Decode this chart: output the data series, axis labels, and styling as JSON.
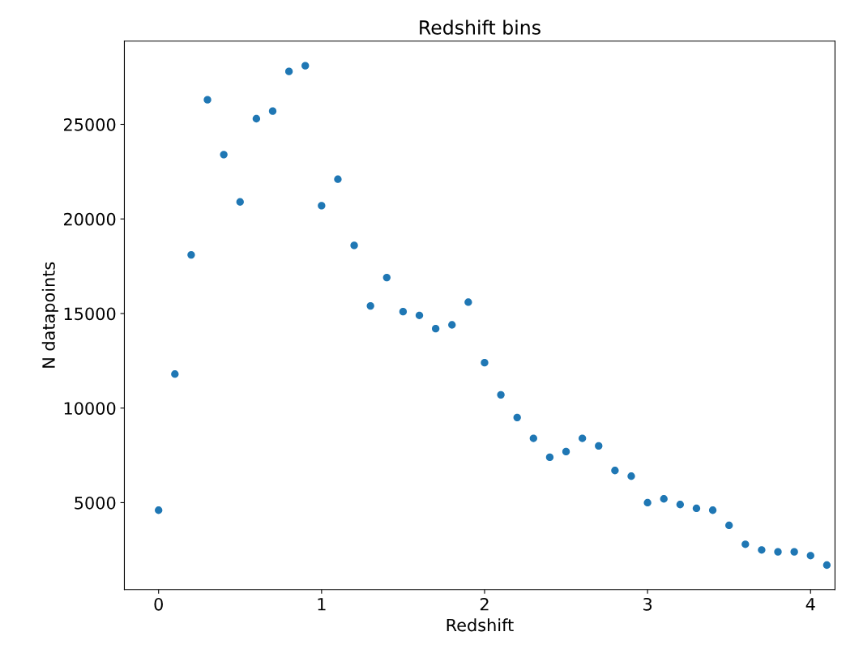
{
  "chart_data": {
    "type": "scatter",
    "title": "Redshift bins",
    "xlabel": "Redshift",
    "ylabel": "N datapoints",
    "x": [
      0,
      0.1,
      0.2,
      0.3,
      0.4,
      0.5,
      0.6,
      0.7,
      0.8,
      0.9,
      1.0,
      1.1,
      1.2,
      1.3,
      1.4,
      1.5,
      1.6,
      1.7,
      1.8,
      1.9,
      2.0,
      2.1,
      2.2,
      2.3,
      2.4,
      2.5,
      2.6,
      2.7,
      2.8,
      2.9,
      3.0,
      3.1,
      3.2,
      3.3,
      3.4,
      3.5,
      3.6,
      3.7,
      3.8,
      3.9,
      4.0,
      4.1
    ],
    "series": [
      {
        "color": "#1f77b4",
        "values": [
          4600,
          11800,
          18100,
          26300,
          23400,
          20900,
          25300,
          25700,
          27800,
          28100,
          20700,
          22100,
          18600,
          15400,
          16900,
          15100,
          14900,
          14200,
          14400,
          15600,
          12400,
          10700,
          9500,
          8400,
          7400,
          7700,
          8400,
          8000,
          6700,
          6400,
          5000,
          5200,
          4900,
          4700,
          4600,
          3800,
          2800,
          2500,
          2400,
          2400,
          2200,
          1700
        ]
      }
    ],
    "xlim": [
      -0.21,
      4.15
    ],
    "ylim": [
      400,
      29400
    ],
    "xticks": [
      0,
      1,
      2,
      3,
      4
    ],
    "yticks": [
      5000,
      10000,
      15000,
      20000,
      25000
    ],
    "grid": false,
    "legend": false,
    "marker": "circle"
  }
}
